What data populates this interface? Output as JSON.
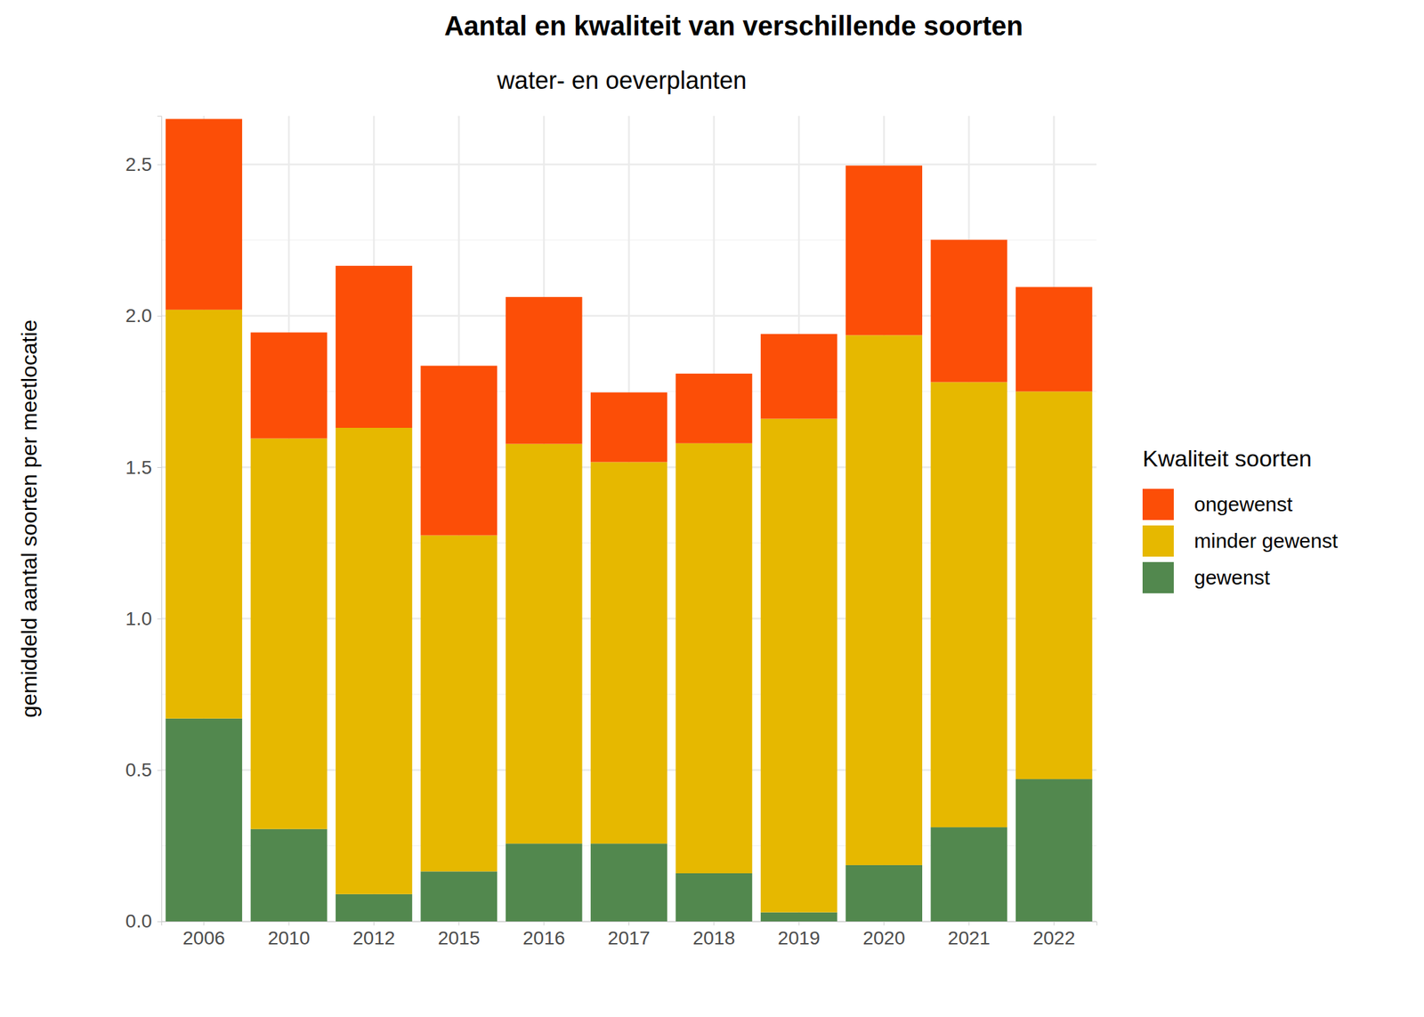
{
  "chart_data": {
    "type": "bar",
    "title": "Aantal en kwaliteit van verschillende soorten",
    "subtitle": "water- en oeverplanten",
    "y_label": "gemiddeld aantal soorten per meetlocatie",
    "legend_title": "Kwaliteit soorten",
    "categories": [
      "2006",
      "2010",
      "2012",
      "2015",
      "2016",
      "2017",
      "2018",
      "2019",
      "2020",
      "2021",
      "2022"
    ],
    "series": [
      {
        "name": "gewenst",
        "color": "#52884e",
        "values": [
          0.67,
          0.305,
          0.09,
          0.165,
          0.257,
          0.257,
          0.159,
          0.03,
          0.186,
          0.311,
          0.47
        ]
      },
      {
        "name": "minder gewenst",
        "color": "#e6b800",
        "values": [
          1.35,
          1.29,
          1.54,
          1.11,
          1.32,
          1.26,
          1.42,
          1.63,
          1.75,
          1.47,
          1.28
        ]
      },
      {
        "name": "ongewenst",
        "color": "#fc4e07",
        "values": [
          0.63,
          0.35,
          0.535,
          0.56,
          0.485,
          0.23,
          0.23,
          0.28,
          0.56,
          0.47,
          0.345
        ]
      }
    ],
    "stacked": true,
    "ylim": [
      0,
      2.66
    ],
    "yticks": [
      {
        "value": 0,
        "label": "0.0"
      },
      0.5,
      {
        "value": 1,
        "label": "1.0"
      },
      1.5,
      {
        "value": 2,
        "label": "2.0"
      },
      2.5
    ],
    "grid": true,
    "legend": "right"
  }
}
